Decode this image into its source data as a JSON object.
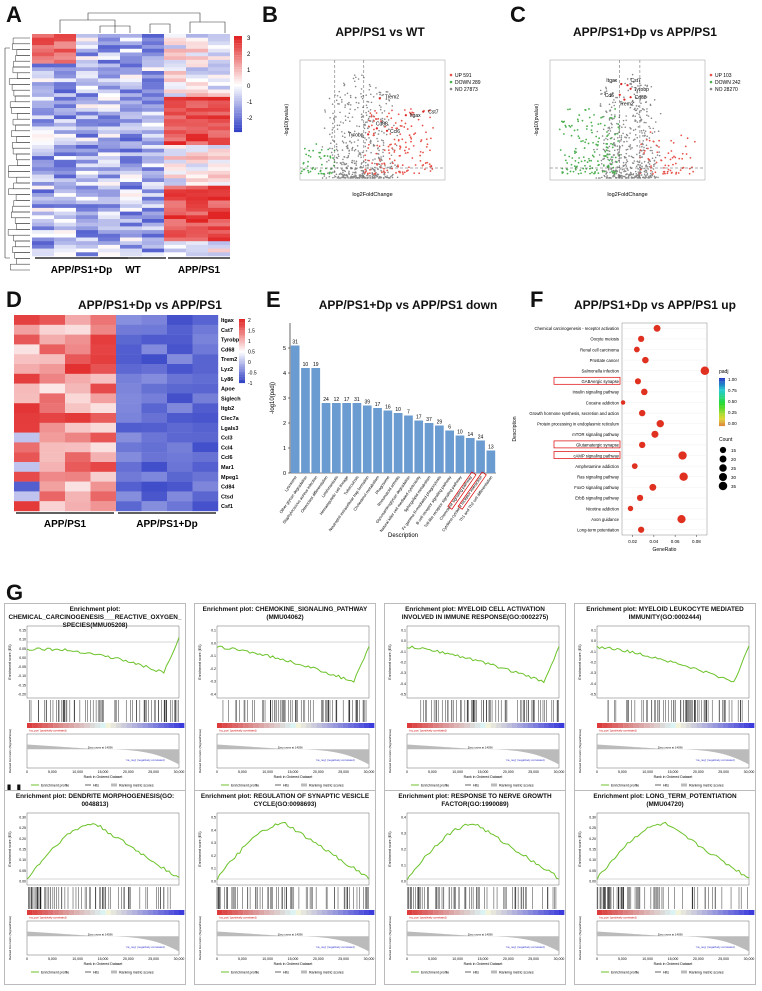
{
  "panels": {
    "A": {
      "letter": "A",
      "group_labels": [
        "APP/PS1+Dp",
        "WT",
        "APP/PS1"
      ],
      "colorbar_ticks": [
        "3",
        "2",
        "1",
        "0",
        "-1",
        "-2"
      ]
    },
    "B": {
      "letter": "B",
      "title": "APP/PS1 vs WT",
      "legend": [
        "UP 591",
        "DOWN 289",
        "NO 27873"
      ],
      "genes": [
        "Trem2",
        "Itgax",
        "Cst7",
        "Cd68",
        "Tyrobp",
        "Ccl6"
      ],
      "xlabel": "log2FoldChange",
      "ylabel": "-log10(pvalue)"
    },
    "C": {
      "letter": "C",
      "title": "APP/PS1+Dp vs APP/PS1",
      "legend": [
        "UP 103",
        "DOWN 242",
        "NO 28270"
      ],
      "genes": [
        "Itgax",
        "Cst7",
        "Tyrobp",
        "Cd6",
        "Cd68",
        "Trem2"
      ],
      "xlabel": "log2FoldChange",
      "ylabel": "-log10(pvalue)"
    },
    "D": {
      "letter": "D",
      "title": "APP/PS1+Dp vs APP/PS1",
      "genes": [
        "Itgax",
        "Cst7",
        "Tyrobp",
        "Cd68",
        "Trem2",
        "Lyz2",
        "Ly86",
        "Apoe",
        "Siglech",
        "Itgb2",
        "Clec7a",
        "Lgals3",
        "Ccl3",
        "Ccl4",
        "Ccl6",
        "Mar1",
        "Mpeg1",
        "Cd84",
        "Ctsd",
        "Csf1"
      ],
      "group_labels": [
        "APP/PS1",
        "APP/PS1+Dp"
      ],
      "colorbar_ticks": [
        "2",
        "1.5",
        "1",
        "0.5",
        "0",
        "-0.5",
        "-1"
      ]
    },
    "E": {
      "letter": "E",
      "title": "APP/PS1+Dp vs APP/PS1 down",
      "xlabel": "Description",
      "ylabel": "-log10(padj)"
    },
    "F": {
      "letter": "F",
      "title": "APP/PS1+Dp vs APP/PS1 up",
      "xlabel": "GeneRatio",
      "ylabel": "Description",
      "legend_padj_title": "padj",
      "legend_padj_ticks": [
        "1.00",
        "0.75",
        "0.50",
        "0.25",
        "0.00"
      ],
      "legend_count_title": "Count",
      "legend_count_ticks": [
        "15",
        "20",
        "25",
        "30",
        "35"
      ]
    },
    "G": {
      "letter": "G"
    },
    "H": {
      "letter": "H"
    }
  },
  "gsea": {
    "ylabel_es": "Enrichment score (ES)",
    "ylabel_rank": "Ranked list metric (Signal2Noise)",
    "xlabel": "Rank in Ordered Dataset",
    "legend": [
      "Enrichment profile",
      "Hits",
      "Ranking metric scores"
    ],
    "pos_label": "'na_pos' (positively correlated)",
    "neg_label": "'na_neg' (negatively correlated)",
    "zero_label": "Zero cross at 14036",
    "xticks": [
      "0",
      "5,000",
      "10,000",
      "15,000",
      "20,000",
      "25,000",
      "30,000"
    ],
    "G": [
      {
        "title": "Enrichment plot:\nCHEMICAL_CARCINOGENESIS___REACTIVE_OXYGEN_\nSPECIES(MMU05208)",
        "yticks": [
          "0.15",
          "0.10",
          "0.05",
          "0.00",
          "-0.05",
          "-0.10",
          "-0.15",
          "-0.20"
        ]
      },
      {
        "title": "Enrichment plot: CHEMOKINE_SIGNALING_PATHWAY\n(MMU04062)",
        "yticks": [
          "0.1",
          "0.0",
          "-0.1",
          "-0.2",
          "-0.3",
          "-0.4"
        ]
      },
      {
        "title": "Enrichment plot: MYELOID CELL ACTIVATION\nINVOLVED IN IMMUNE RESPONSE(GO:0002275)",
        "yticks": [
          "0.1",
          "0.0",
          "-0.1",
          "-0.2",
          "-0.3",
          "-0.4",
          "-0.5"
        ]
      },
      {
        "title": "Enrichment plot: MYELOID LEUKOCYTE MEDIATED\nIMMUNITY(GO:0002444)",
        "yticks": [
          "0.1",
          "0.0",
          "-0.1",
          "-0.2",
          "-0.3",
          "-0.4",
          "-0.5"
        ]
      }
    ],
    "H": [
      {
        "title": "Enrichment plot: DENDRITE MORPHOGENESIS(GO:\n0048813)",
        "yticks": [
          "0.30",
          "0.25",
          "0.20",
          "0.15",
          "0.10",
          "0.05",
          "0.00"
        ]
      },
      {
        "title": "Enrichment plot: REGULATION OF SYNAPTIC VESICLE\nCYCLE(GO:0098693)",
        "yticks": [
          "0.5",
          "0.4",
          "0.3",
          "0.2",
          "0.1",
          "0.0"
        ]
      },
      {
        "title": "Enrichment plot: RESPONSE TO NERVE GROWTH\nFACTOR(GO:1990089)",
        "yticks": [
          "0.4",
          "0.3",
          "0.2",
          "0.1",
          "0.0"
        ]
      },
      {
        "title": "Enrichment plot: LONG_TERM_POTENTIATION\n(MMU04720)",
        "yticks": [
          "0.30",
          "0.25",
          "0.20",
          "0.15",
          "0.10",
          "0.05",
          "0.00"
        ]
      }
    ]
  },
  "chart_data": [
    {
      "type": "bar",
      "title": "APP/PS1+Dp vs APP/PS1 down",
      "xlabel": "Description",
      "ylabel": "-log10(padj)",
      "ylim": [
        0,
        6
      ],
      "categories": [
        "Lysosome",
        "Other glycan degradation",
        "Staphylococcus aureus infection",
        "Osteoclast differentiation",
        "Leishmaniasis",
        "Hematopoietic cell lineage",
        "Tuberculosis",
        "Neutrophil extracellular trap formation",
        "Cholesterol metabolism",
        "Phagosome",
        "Rheumatoid arthritis",
        "Glycosaminoglycan degradation",
        "Natural killer cell mediated cytotoxicity",
        "Sphingolipid metabolism",
        "Fc gamma R-mediated phagocytosis",
        "B cell receptor signaling pathway",
        "Toll-like receptor signaling pathway",
        "Chemokine signaling pathway",
        "Cytokine-cytokine receptor interaction",
        "Th1 and Th2 cell differentiation"
      ],
      "values": [
        5.1,
        4.2,
        4.2,
        2.8,
        2.8,
        2.8,
        2.8,
        2.7,
        2.6,
        2.5,
        2.4,
        2.3,
        2.1,
        2.0,
        1.9,
        1.7,
        1.5,
        1.4,
        1.3,
        0.9
      ],
      "bar_labels": [
        "31",
        "10",
        "19",
        "24",
        "12",
        "17",
        "31",
        "39",
        "17",
        "16",
        "10",
        "7",
        "17",
        "37",
        "29",
        "6",
        "10",
        "14",
        "24",
        "13"
      ],
      "highlighted": [
        "Chemokine signaling pathway",
        "Cytokine-cytokine receptor interaction"
      ]
    },
    {
      "type": "scatter",
      "title": "APP/PS1+Dp vs APP/PS1 up",
      "xlabel": "GeneRatio",
      "ylabel": "Description",
      "xlim": [
        0.01,
        0.09
      ],
      "xticks": [
        "0.02",
        "0.04",
        "0.06",
        "0.08"
      ],
      "categories": [
        "Chemical carcinogenesis - receptor activation",
        "Oocyte meiosis",
        "Renal cell carcinoma",
        "Prostate cancer",
        "Salmonella infection",
        "GABAergic synapse",
        "Insulin signaling pathway",
        "Cocaine addiction",
        "Growth hormone synthesis, secretion and action",
        "Protein processing in endoplasmic reticulum",
        "mTOR signaling pathway",
        "Glutamatergic synapse",
        "cAMP signaling pathway",
        "Amphetamine addiction",
        "Ras signaling pathway",
        "FoxO signaling pathway",
        "ErbB signaling pathway",
        "Nicotine addiction",
        "Axon guidance",
        "Long-term potentiation"
      ],
      "gene_ratio": [
        0.043,
        0.028,
        0.024,
        0.032,
        0.088,
        0.025,
        0.031,
        0.011,
        0.029,
        0.046,
        0.041,
        0.029,
        0.067,
        0.022,
        0.068,
        0.039,
        0.027,
        0.018,
        0.066,
        0.028
      ],
      "count": [
        20,
        15,
        12,
        17,
        35,
        14,
        17,
        5,
        16,
        24,
        21,
        16,
        33,
        12,
        34,
        20,
        15,
        10,
        32,
        15
      ],
      "highlighted": [
        "GABAergic synapse",
        "Glutamatergic synapse",
        "cAMP signaling pathway"
      ]
    }
  ]
}
